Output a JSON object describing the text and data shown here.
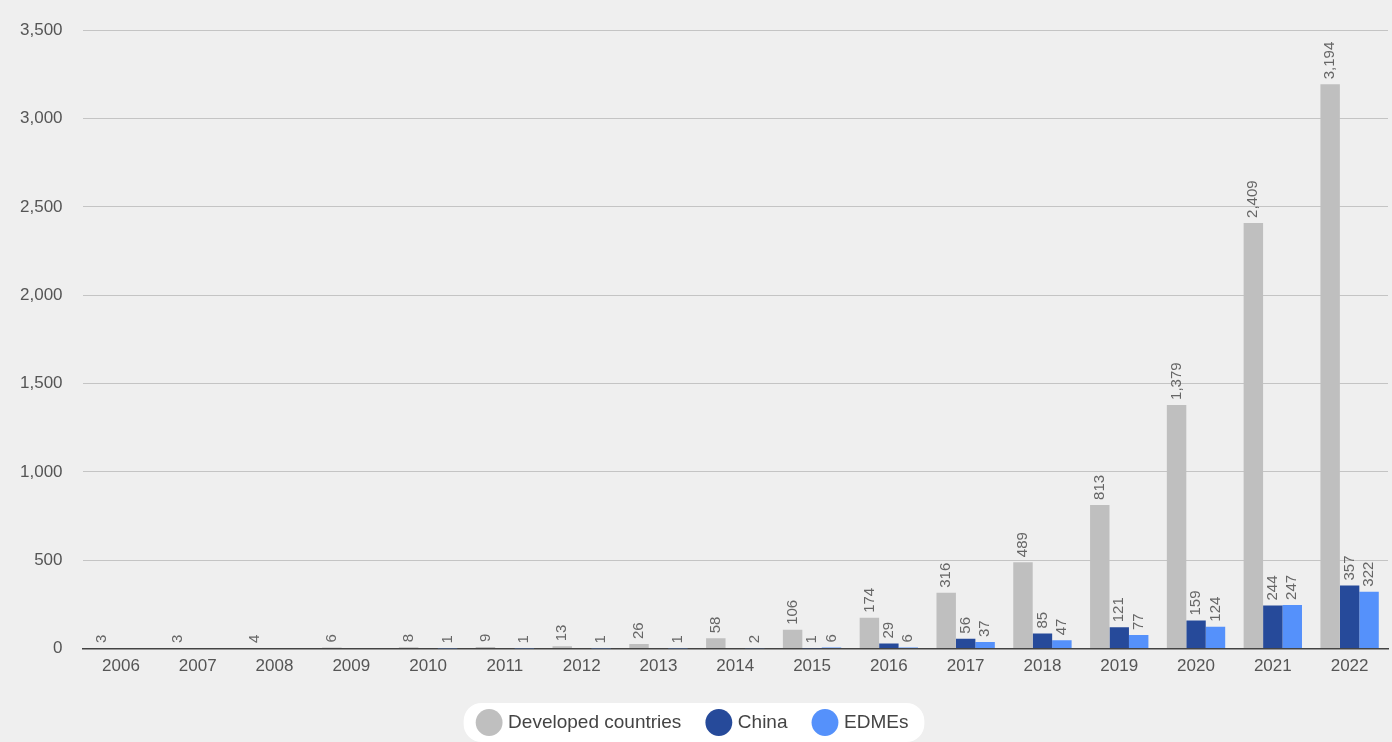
{
  "chart_data": {
    "type": "bar",
    "categories": [
      "2006",
      "2007",
      "2008",
      "2009",
      "2010",
      "2011",
      "2012",
      "2013",
      "2014",
      "2015",
      "2016",
      "2017",
      "2018",
      "2019",
      "2020",
      "2021",
      "2022"
    ],
    "series": [
      {
        "name": "Developed countries",
        "color": "#bfbfbf",
        "values": [
          3,
          3,
          4,
          6,
          8,
          9,
          13,
          26,
          58,
          106,
          174,
          316,
          489,
          813,
          1379,
          2409,
          3194
        ],
        "value_labels": [
          "3",
          "3",
          "4",
          "6",
          "8",
          "9",
          "13",
          "26",
          "58",
          "106",
          "174",
          "316",
          "489",
          "813",
          "1,379",
          "2,409",
          "3,194"
        ]
      },
      {
        "name": "China",
        "color": "#264a9a",
        "values": [
          null,
          null,
          null,
          null,
          null,
          null,
          null,
          null,
          null,
          1,
          29,
          56,
          85,
          121,
          159,
          244,
          357
        ],
        "value_labels": [
          null,
          null,
          null,
          null,
          null,
          null,
          null,
          null,
          null,
          "1",
          "29",
          "56",
          "85",
          "121",
          "159",
          "244",
          "357"
        ]
      },
      {
        "name": "EDMEs",
        "color": "#5591fb",
        "values": [
          null,
          null,
          null,
          null,
          1,
          1,
          1,
          1,
          2,
          6,
          6,
          37,
          47,
          77,
          124,
          247,
          322
        ],
        "value_labels": [
          null,
          null,
          null,
          null,
          "1",
          "1",
          "1",
          "1",
          "2",
          "6",
          "6",
          "37",
          "47",
          "77",
          "124",
          "247",
          "322"
        ]
      }
    ],
    "ylim": [
      0,
      3500
    ],
    "yticks": [
      {
        "value": 0,
        "label": "0"
      },
      {
        "value": 500,
        "label": "500"
      },
      {
        "value": 1000,
        "label": "1,000"
      },
      {
        "value": 1500,
        "label": "1,500"
      },
      {
        "value": 2000,
        "label": "2,000"
      },
      {
        "value": 2500,
        "label": "2,500"
      },
      {
        "value": 3000,
        "label": "3,000"
      },
      {
        "value": 3500,
        "label": "3,500"
      }
    ],
    "grid": "y",
    "legend": "bottom"
  }
}
